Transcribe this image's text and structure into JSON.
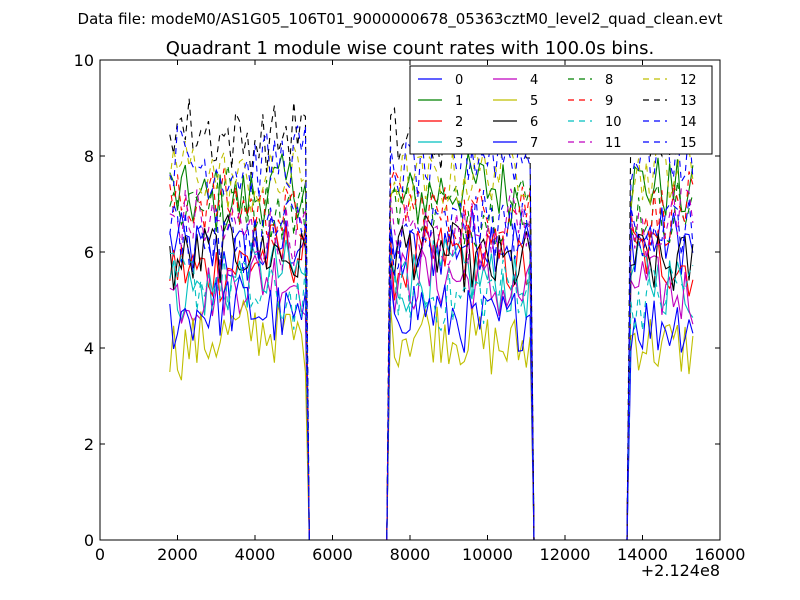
{
  "suptitle": "Data file: modeM0/AS1G05_106T01_9000000678_05363cztM0_level2_quad_clean.evt",
  "chart_data": {
    "type": "line",
    "title": "Quadrant 1 module wise count rates with 100.0s bins.",
    "xlabel": "",
    "ylabel": "",
    "xlim": [
      0,
      16000
    ],
    "ylim": [
      0,
      10
    ],
    "x_offset_label": "+2.124e8",
    "xticks": [
      0,
      2000,
      4000,
      6000,
      8000,
      10000,
      12000,
      14000,
      16000
    ],
    "yticks": [
      0,
      2,
      4,
      6,
      8,
      10
    ],
    "x_tick_labels": [
      "0",
      "2000",
      "4000",
      "6000",
      "8000",
      "10000",
      "12000",
      "14000",
      "16000"
    ],
    "y_tick_labels": [
      "0",
      "2",
      "4",
      "6",
      "8",
      "10"
    ],
    "bin_seconds": 100,
    "segments": [
      {
        "start": 1800,
        "end": 5300
      },
      {
        "start": 7500,
        "end": 11100
      },
      {
        "start": 13700,
        "end": 15300
      }
    ],
    "gaps": [
      {
        "fall_end": 5400,
        "rise_start": 7400
      },
      {
        "fall_end": 11200,
        "rise_start": 13600
      }
    ],
    "legend": {
      "position": "top-right",
      "columns": 4
    },
    "series": [
      {
        "name": "0",
        "color": "#0000ff",
        "dash": "solid",
        "level": 6.1
      },
      {
        "name": "1",
        "color": "#008000",
        "dash": "solid",
        "level": 7.2
      },
      {
        "name": "2",
        "color": "#ff0000",
        "dash": "solid",
        "level": 5.8
      },
      {
        "name": "3",
        "color": "#00bfbf",
        "dash": "solid",
        "level": 5.4
      },
      {
        "name": "4",
        "color": "#bf00bf",
        "dash": "solid",
        "level": 5.3
      },
      {
        "name": "5",
        "color": "#bfbf00",
        "dash": "solid",
        "level": 4.2
      },
      {
        "name": "6",
        "color": "#000000",
        "dash": "solid",
        "level": 5.9
      },
      {
        "name": "7",
        "color": "#0000ff",
        "dash": "solid",
        "level": 4.7
      },
      {
        "name": "8",
        "color": "#008000",
        "dash": "dashed",
        "level": 7.0
      },
      {
        "name": "9",
        "color": "#ff0000",
        "dash": "dashed",
        "level": 6.9
      },
      {
        "name": "10",
        "color": "#00bfbf",
        "dash": "dashed",
        "level": 5.2
      },
      {
        "name": "11",
        "color": "#bf00bf",
        "dash": "dashed",
        "level": 6.5
      },
      {
        "name": "12",
        "color": "#bfbf00",
        "dash": "dashed",
        "level": 7.6
      },
      {
        "name": "13",
        "color": "#000000",
        "dash": "dashed",
        "level": 8.5
      },
      {
        "name": "14",
        "color": "#0000ff",
        "dash": "dashed",
        "level": 7.9
      },
      {
        "name": "15",
        "color": "#0000ff",
        "dash": "dashed",
        "level": 6.4
      }
    ]
  }
}
